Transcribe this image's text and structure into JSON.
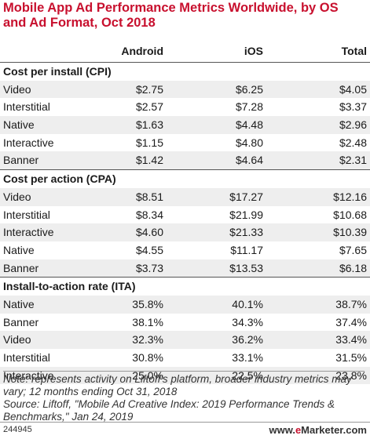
{
  "title": "Mobile App Ad Performance Metrics Worldwide, by OS and Ad Format, Oct 2018",
  "columns": [
    "Android",
    "iOS",
    "Total"
  ],
  "sections": [
    {
      "name": "Cost per install (CPI)",
      "rows": [
        {
          "label": "Video",
          "android": "$2.75",
          "ios": "$6.25",
          "total": "$4.05"
        },
        {
          "label": "Interstitial",
          "android": "$2.57",
          "ios": "$7.28",
          "total": "$3.37"
        },
        {
          "label": "Native",
          "android": "$1.63",
          "ios": "$4.48",
          "total": "$2.96"
        },
        {
          "label": "Interactive",
          "android": "$1.15",
          "ios": "$4.80",
          "total": "$2.48"
        },
        {
          "label": "Banner",
          "android": "$1.42",
          "ios": "$4.64",
          "total": "$2.31"
        }
      ]
    },
    {
      "name": "Cost per action (CPA)",
      "rows": [
        {
          "label": "Video",
          "android": "$8.51",
          "ios": "$17.27",
          "total": "$12.16"
        },
        {
          "label": "Interstitial",
          "android": "$8.34",
          "ios": "$21.99",
          "total": "$10.68"
        },
        {
          "label": "Interactive",
          "android": "$4.60",
          "ios": "$21.33",
          "total": "$10.39"
        },
        {
          "label": "Native",
          "android": "$4.55",
          "ios": "$11.17",
          "total": "$7.65"
        },
        {
          "label": "Banner",
          "android": "$3.73",
          "ios": "$13.53",
          "total": "$6.18"
        }
      ]
    },
    {
      "name": "Install-to-action rate (ITA)",
      "rows": [
        {
          "label": "Native",
          "android": "35.8%",
          "ios": "40.1%",
          "total": "38.7%"
        },
        {
          "label": "Banner",
          "android": "38.1%",
          "ios": "34.3%",
          "total": "37.4%"
        },
        {
          "label": "Video",
          "android": "32.3%",
          "ios": "36.2%",
          "total": "33.4%"
        },
        {
          "label": "Interstitial",
          "android": "30.8%",
          "ios": "33.1%",
          "total": "31.5%"
        },
        {
          "label": "Interactive",
          "android": "25.0%",
          "ios": "22.5%",
          "total": "23.8%"
        }
      ]
    }
  ],
  "note": "Note: represents activity on Liftoff's platform, broader industry metrics may vary; 12 months ending Oct 31, 2018",
  "source": "Source: Liftoff, \"Mobile Ad Creative Index: 2019 Performance Trends & Benchmarks,\" Jan 24, 2019",
  "footer": {
    "id": "244945",
    "brand_prefix": "www.",
    "brand_e": "e",
    "brand_rest": "Marketer.com"
  }
}
